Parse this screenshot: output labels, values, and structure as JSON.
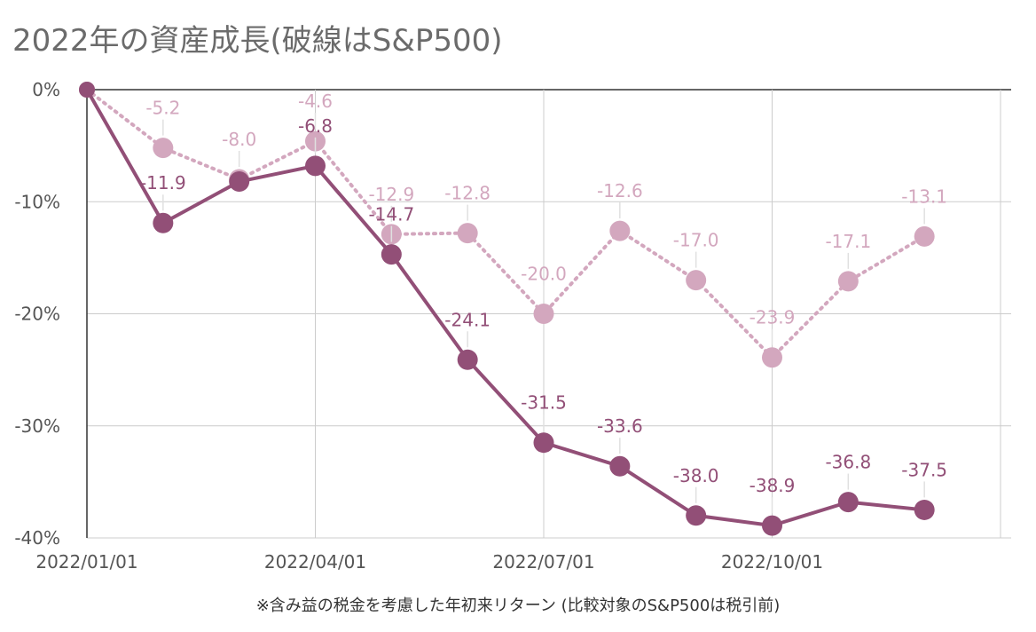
{
  "chart_data": {
    "type": "line",
    "title": "2022年の資産成長(破線はS&P500)",
    "caption": "※含み益の税金を考慮した年初来リターン (比較対象のS&P500は税引前)",
    "x": [
      "2022/01/01",
      "2022/02/01",
      "2022/03/01",
      "2022/04/01",
      "2022/05/01",
      "2022/06/01",
      "2022/07/01",
      "2022/08/01",
      "2022/09/01",
      "2022/10/01",
      "2022/11/01",
      "2022/12/01"
    ],
    "x_tick_labels": [
      "2022/01/01",
      "2022/04/01",
      "2022/07/01",
      "2022/10/01"
    ],
    "x_tick_indices": [
      0,
      3,
      6,
      9
    ],
    "x_extent": [
      0,
      12
    ],
    "ylim": [
      -40,
      0
    ],
    "y_ticks": [
      0,
      -10,
      -20,
      -30,
      -40
    ],
    "y_tick_labels": [
      "0%",
      "-10%",
      "-20%",
      "-30%",
      "-40%"
    ],
    "grid": true,
    "series": [
      {
        "style": "dotted",
        "color": "#d3a7be",
        "values": [
          0,
          -5.2,
          -8.0,
          -4.6,
          -12.9,
          -12.8,
          -20.0,
          -12.6,
          -17.0,
          -23.9,
          -17.1,
          -13.1
        ],
        "labels": [
          "",
          "-5.2",
          "-8.0",
          "-4.6",
          "-12.9",
          "-12.8",
          "-20.0",
          "-12.6",
          "-17.0",
          "-23.9",
          "-17.1",
          "-13.1"
        ]
      },
      {
        "style": "solid",
        "color": "#924f77",
        "values": [
          0,
          -11.9,
          -8.2,
          -6.8,
          -14.7,
          -24.1,
          -31.5,
          -33.6,
          -38.0,
          -38.9,
          -36.8,
          -37.5
        ],
        "labels": [
          "",
          "-11.9",
          "",
          "-6.8",
          "-14.7",
          "-24.1",
          "-31.5",
          "-33.6",
          "-38.0",
          "-38.9",
          "-36.8",
          "-37.5"
        ]
      }
    ]
  }
}
